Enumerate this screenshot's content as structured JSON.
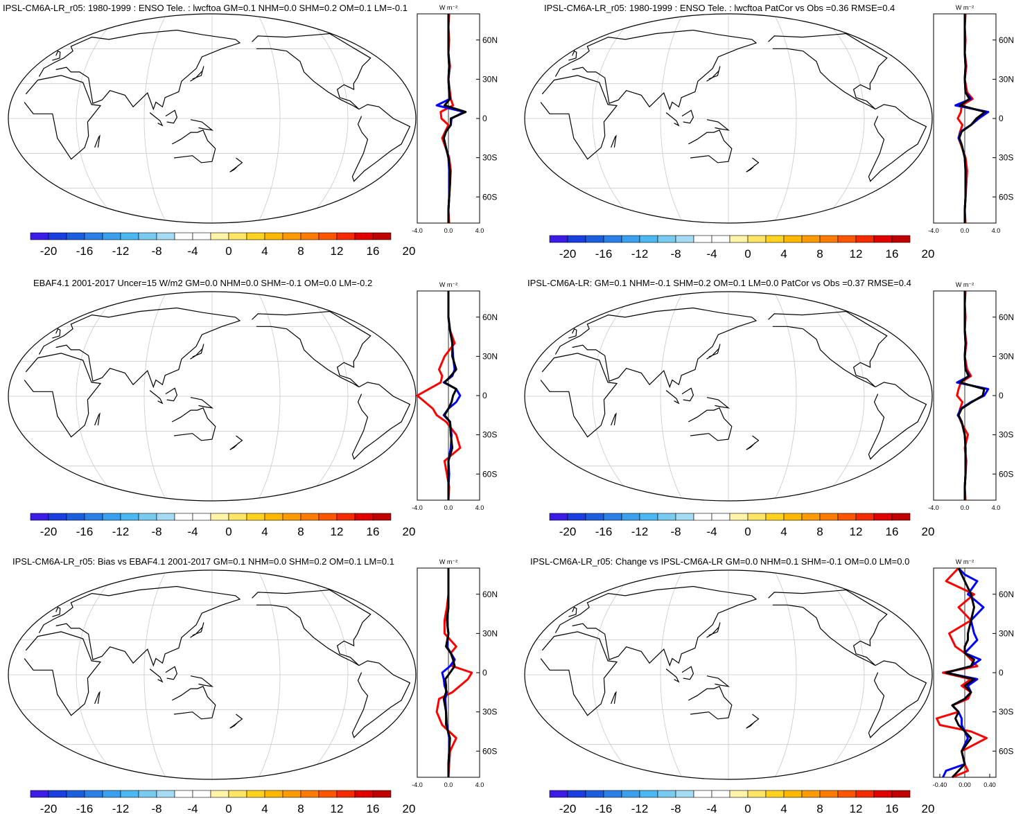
{
  "colorbar": {
    "colors": [
      "#3a1ce6",
      "#1a3fe0",
      "#1c5fde",
      "#2a80e6",
      "#3aa0ee",
      "#4cb8f2",
      "#78cbef",
      "#a4dbf3",
      "#ffffff",
      "#ffffff",
      "#fff3a8",
      "#ffe566",
      "#ffd21f",
      "#ffb800",
      "#ff9a00",
      "#ff7a00",
      "#ff5500",
      "#f52a00",
      "#e00000",
      "#c00000"
    ],
    "tick_labels": [
      "-20",
      "-16",
      "-12",
      "-8",
      "-4",
      "0",
      "4",
      "8",
      "12",
      "16",
      "20"
    ]
  },
  "line_colors": {
    "series_a": "#ff0000",
    "series_b": "#0000ff",
    "series_c": "#000000"
  },
  "panels": [
    {
      "title": "IPSL-CM6A-LR_r05: 1980-1999 : ENSO Tele. : lwcftoa GM=0.1 NHM=0.0 SHM=0.2 OM=0.1 LM=-0.1",
      "units": "W m⁻²",
      "lat_labels": [
        "60N",
        "30N",
        "0",
        "30S",
        "60S"
      ],
      "x_ticks": [
        "-4.0",
        "0.0",
        "4.0"
      ],
      "chart_data": {
        "type": "line",
        "xlim": [
          -4,
          4
        ],
        "ylim": [
          -80,
          80
        ],
        "y": [
          -80,
          -70,
          -60,
          -50,
          -40,
          -30,
          -20,
          -15,
          -10,
          -5,
          0,
          5,
          10,
          15,
          20,
          30,
          40,
          50,
          60,
          70,
          80
        ],
        "series": [
          {
            "values": [
              0.1,
              0.0,
              0.1,
              0.2,
              0.3,
              0.1,
              -0.5,
              -0.8,
              -0.4,
              0.0,
              -0.9,
              -1.0,
              0.6,
              0.3,
              0.2,
              0.0,
              0.2,
              0.0,
              0.1,
              0.0,
              0.1
            ]
          },
          {
            "values": [
              0.0,
              0.0,
              0.1,
              0.1,
              0.1,
              0.0,
              -0.4,
              -0.6,
              -0.3,
              0.3,
              0.4,
              2.0,
              -1.5,
              0.2,
              0.1,
              0.0,
              0.1,
              0.0,
              0.0,
              0.0,
              0.0
            ]
          },
          {
            "values": [
              0.0,
              0.0,
              0.1,
              0.2,
              0.2,
              0.0,
              -0.4,
              -0.6,
              -0.3,
              0.3,
              0.3,
              2.2,
              -0.5,
              0.2,
              0.1,
              0.0,
              0.1,
              0.0,
              0.0,
              0.0,
              0.0
            ]
          }
        ]
      }
    },
    {
      "title": "IPSL-CM6A-LR_r05: 1980-1999 : ENSO Tele. : lwcftoa PatCor vs Obs =0.36 RMSE=0.4",
      "units": "W m⁻²",
      "lat_labels": [
        "60N",
        "30N",
        "0",
        "30S",
        "60S"
      ],
      "x_ticks": [
        "-4.0",
        "0.0",
        "4.0"
      ],
      "chart_data": {
        "type": "line",
        "xlim": [
          -4,
          4
        ],
        "ylim": [
          -80,
          80
        ],
        "y": [
          -80,
          -70,
          -60,
          -50,
          -40,
          -30,
          -20,
          -15,
          -10,
          -5,
          0,
          5,
          10,
          15,
          20,
          30,
          40,
          50,
          60,
          70,
          80
        ],
        "series": [
          {
            "values": [
              0.1,
              0.0,
              0.1,
              0.2,
              0.3,
              0.1,
              -0.5,
              -0.8,
              -0.6,
              -0.3,
              -0.9,
              -0.5,
              -0.4,
              1.0,
              0.3,
              0.0,
              0.2,
              0.0,
              0.1,
              0.0,
              0.1
            ]
          },
          {
            "values": [
              0.0,
              0.0,
              0.1,
              0.1,
              0.1,
              0.0,
              -0.4,
              -0.8,
              -0.5,
              0.8,
              1.8,
              3.0,
              -1.2,
              0.8,
              0.1,
              0.0,
              0.1,
              0.0,
              0.0,
              0.0,
              0.0
            ]
          },
          {
            "values": [
              0.0,
              0.0,
              0.1,
              0.1,
              0.1,
              0.0,
              -0.4,
              -0.7,
              -0.4,
              0.8,
              1.5,
              2.6,
              -0.6,
              0.6,
              0.1,
              0.0,
              0.1,
              0.0,
              0.0,
              0.0,
              0.0
            ]
          }
        ]
      }
    },
    {
      "title": "EBAF4.1 2001-2017 Uncer=15 W/m2 GM=0.0 NHM=0.0 SHM=-0.1 OM=0.0 LM=-0.2",
      "units": "W m⁻²",
      "lat_labels": [
        "60N",
        "30N",
        "0",
        "30S",
        "60S"
      ],
      "x_ticks": [
        "-4.0",
        "0.0",
        "4.0"
      ],
      "chart_data": {
        "type": "line",
        "xlim": [
          -4,
          4
        ],
        "ylim": [
          -80,
          80
        ],
        "y": [
          -80,
          -70,
          -60,
          -50,
          -40,
          -30,
          -20,
          -15,
          -10,
          -5,
          0,
          5,
          10,
          15,
          20,
          30,
          40,
          50,
          60,
          70,
          80
        ],
        "series": [
          {
            "values": [
              0.0,
              0.1,
              -0.2,
              -0.5,
              1.5,
              1.0,
              -0.3,
              -1.5,
              -2.0,
              -3.0,
              -4.0,
              -2.5,
              -1.0,
              -0.8,
              -1.2,
              -0.5,
              0.8,
              0.2,
              0.0,
              0.0,
              0.0
            ]
          },
          {
            "values": [
              0.0,
              0.0,
              0.1,
              0.0,
              0.3,
              0.4,
              0.2,
              -0.6,
              0.0,
              1.0,
              1.5,
              1.0,
              -0.6,
              0.5,
              0.8,
              0.6,
              0.5,
              0.2,
              0.0,
              0.0,
              0.0
            ]
          },
          {
            "values": [
              0.0,
              0.0,
              0.0,
              0.0,
              0.5,
              0.3,
              0.2,
              -0.5,
              0.0,
              0.4,
              0.6,
              1.0,
              -0.5,
              0.3,
              1.0,
              0.5,
              0.5,
              0.2,
              0.0,
              0.0,
              0.0
            ]
          }
        ]
      }
    },
    {
      "title": "IPSL-CM6A-LR: GM=0.1 NHM=-0.1 SHM=0.2 OM=0.1 LM=0.0 PatCor vs Obs =0.37 RMSE=0.4",
      "units": "W m⁻²",
      "lat_labels": [
        "60N",
        "30N",
        "0",
        "30S",
        "60S"
      ],
      "x_ticks": [
        "-4.0",
        "0.0",
        "4.0"
      ],
      "chart_data": {
        "type": "line",
        "xlim": [
          -4,
          4
        ],
        "ylim": [
          -80,
          80
        ],
        "y": [
          -80,
          -70,
          -60,
          -50,
          -40,
          -30,
          -20,
          -15,
          -10,
          -5,
          0,
          5,
          10,
          15,
          20,
          30,
          40,
          50,
          60,
          70,
          80
        ],
        "series": [
          {
            "values": [
              0.1,
              0.0,
              0.1,
              0.2,
              0.0,
              0.4,
              -0.5,
              -0.8,
              -0.6,
              -0.3,
              -1.0,
              -0.8,
              -0.5,
              0.8,
              0.3,
              0.0,
              0.2,
              0.0,
              0.1,
              0.0,
              0.1
            ]
          },
          {
            "values": [
              0.0,
              0.0,
              0.1,
              0.1,
              0.1,
              0.0,
              -0.4,
              -0.9,
              -0.5,
              0.8,
              2.5,
              3.0,
              -1.0,
              0.6,
              0.1,
              0.0,
              0.1,
              0.0,
              0.0,
              0.0,
              0.0
            ]
          },
          {
            "values": [
              0.0,
              0.0,
              0.1,
              0.1,
              0.1,
              0.0,
              -0.4,
              -0.8,
              -0.4,
              0.9,
              2.3,
              2.5,
              -0.6,
              0.5,
              0.1,
              0.0,
              0.1,
              0.0,
              0.0,
              0.0,
              0.0
            ]
          }
        ]
      }
    },
    {
      "title": "IPSL-CM6A-LR_r05: Bias vs EBAF4.1 2001-2017 GM=0.1 NHM=0.0 SHM=0.2 OM=0.1 LM=0.1",
      "units": "W m⁻²",
      "lat_labels": [
        "60N",
        "30N",
        "0",
        "30S",
        "60S"
      ],
      "x_ticks": [
        "-4.0",
        "0.0",
        "4.0"
      ],
      "chart_data": {
        "type": "line",
        "xlim": [
          -4,
          4
        ],
        "ylim": [
          -80,
          80
        ],
        "y": [
          -80,
          -70,
          -60,
          -50,
          -40,
          -30,
          -20,
          -15,
          -10,
          -5,
          0,
          5,
          10,
          15,
          20,
          30,
          40,
          50,
          60,
          70,
          80
        ],
        "series": [
          {
            "values": [
              0.0,
              0.1,
              0.2,
              1.0,
              -0.8,
              -1.5,
              -1.2,
              0.5,
              1.5,
              2.5,
              3.0,
              0.5,
              0.8,
              0.3,
              1.0,
              -0.5,
              -0.5,
              -0.2,
              0.0,
              0.0,
              0.0
            ]
          },
          {
            "values": [
              0.0,
              0.0,
              0.1,
              0.1,
              -0.2,
              -0.3,
              -0.4,
              -0.2,
              -0.5,
              -0.6,
              -0.8,
              0.2,
              0.8,
              0.3,
              -0.2,
              0.0,
              -0.2,
              0.0,
              0.0,
              0.0,
              0.0
            ]
          },
          {
            "values": [
              0.0,
              0.0,
              0.1,
              0.2,
              -0.3,
              -0.3,
              -0.6,
              -0.3,
              -0.3,
              -0.4,
              0.2,
              0.8,
              0.6,
              0.3,
              -0.3,
              0.0,
              -0.2,
              0.0,
              0.0,
              0.0,
              0.0
            ]
          }
        ]
      }
    },
    {
      "title": "IPSL-CM6A-LR_r05: Change vs IPSL-CM6A-LR GM=0.0 NHM=0.1 SHM=-0.1 OM=0.0 LM=0.0",
      "units": "W m⁻²",
      "lat_labels": [
        "60N",
        "30N",
        "0",
        "30S",
        "60S"
      ],
      "x_ticks": [
        "-0.40",
        "0.00",
        "0.40"
      ],
      "chart_data": {
        "type": "line",
        "xlim": [
          -0.5,
          0.5
        ],
        "ylim": [
          -80,
          80
        ],
        "y": [
          -80,
          -75,
          -70,
          -60,
          -50,
          -45,
          -40,
          -35,
          -30,
          -25,
          -20,
          -15,
          -10,
          -5,
          0,
          5,
          10,
          15,
          20,
          25,
          30,
          40,
          50,
          60,
          70,
          75,
          80
        ],
        "series": [
          {
            "values": [
              -0.2,
              0.05,
              0.0,
              -0.05,
              0.35,
              0.1,
              -0.4,
              -0.45,
              -0.1,
              -0.2,
              0.05,
              0.1,
              -0.05,
              0.1,
              -0.35,
              0.2,
              0.1,
              0.0,
              -0.15,
              -0.2,
              -0.25,
              0.1,
              -0.1,
              0.15,
              -0.3,
              -0.2,
              -0.1
            ]
          },
          {
            "values": [
              -0.35,
              -0.3,
              0.0,
              -0.05,
              0.05,
              0.0,
              -0.05,
              -0.05,
              -0.1,
              -0.2,
              0.0,
              0.1,
              0.05,
              0.2,
              -0.3,
              0.1,
              0.25,
              0.0,
              0.1,
              0.2,
              0.15,
              0.1,
              0.3,
              0.05,
              0.2,
              0.0,
              -0.1
            ]
          },
          {
            "values": [
              -0.2,
              -0.1,
              0.0,
              -0.05,
              0.1,
              0.0,
              -0.1,
              -0.15,
              -0.1,
              -0.2,
              0.0,
              0.1,
              0.0,
              0.15,
              -0.3,
              0.1,
              0.15,
              0.0,
              0.0,
              0.05,
              0.05,
              0.1,
              0.15,
              0.1,
              0.0,
              -0.05,
              -0.1
            ]
          }
        ]
      }
    }
  ]
}
